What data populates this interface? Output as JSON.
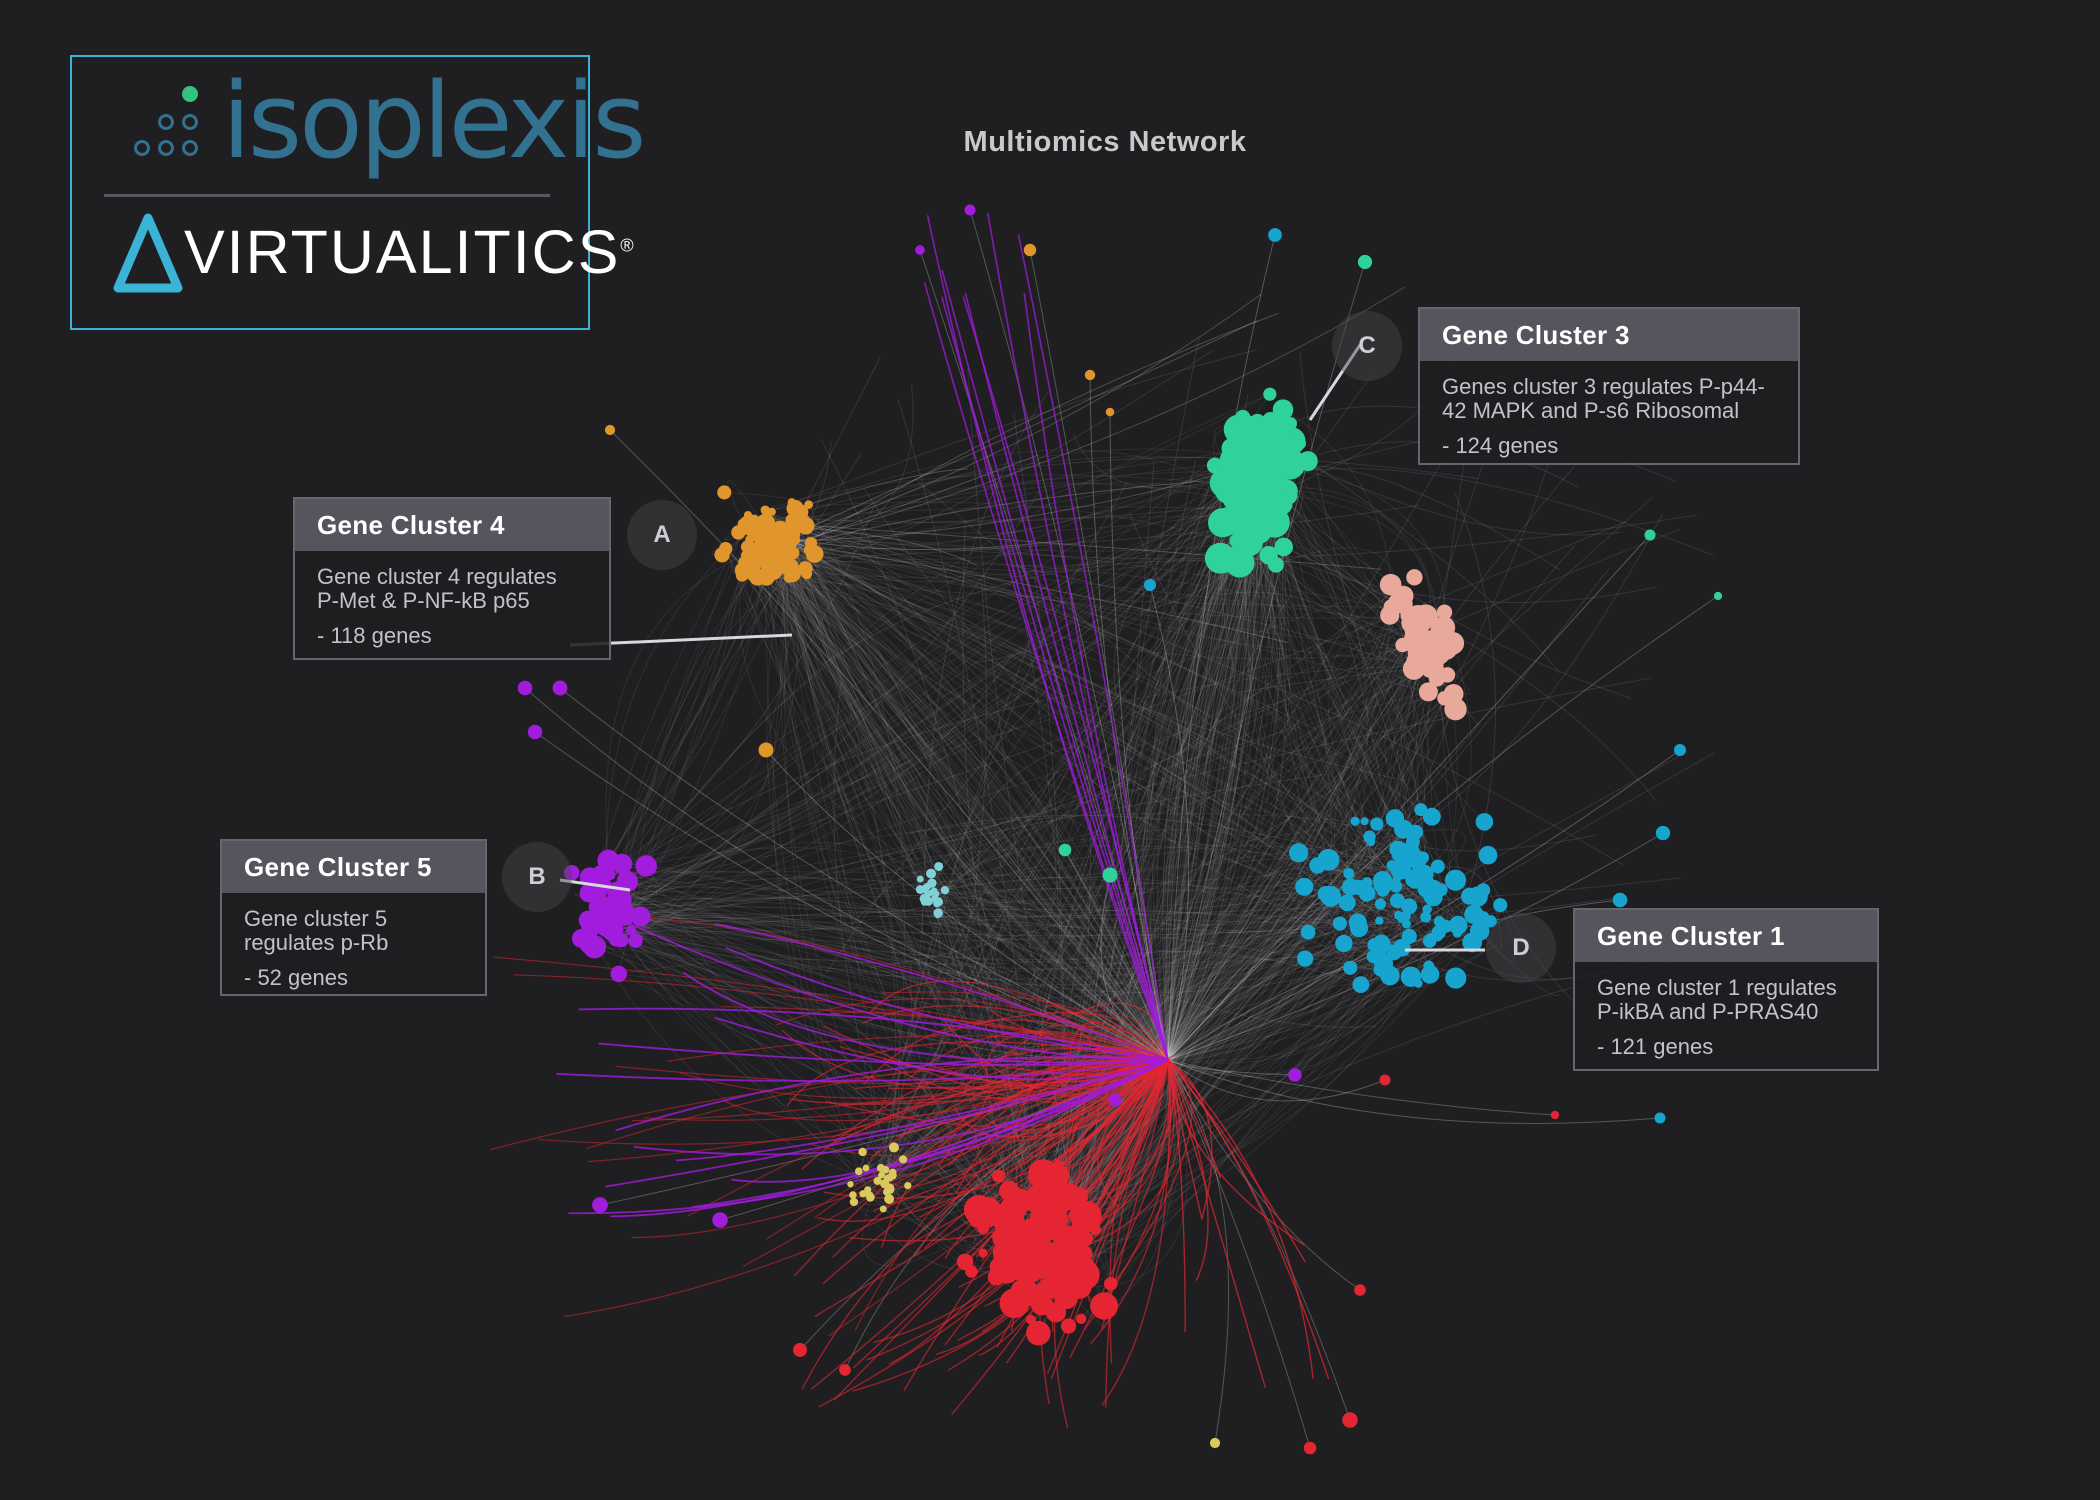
{
  "title": "Multiomics Network",
  "logo": {
    "isoplexis_text": "isoplexis",
    "virtualitics_text": "VIRTUALITICS",
    "iso_dot_accent": "#34c27e",
    "iso_dot_color": "#32718f",
    "virt_triangle_color": "#39b3d6",
    "virt_mark": "®"
  },
  "clusters": [
    {
      "id": "c4",
      "marker": "A",
      "title": "Gene Cluster 4",
      "line1": "Gene cluster 4 regulates",
      "line2": "P-Met & P-NF-kB p65",
      "count": "- 118 genes",
      "color": "#e0962c"
    },
    {
      "id": "c5",
      "marker": "B",
      "title": "Gene Cluster 5",
      "line1": "Gene cluster 5",
      "line2": "regulates p-Rb",
      "count": "- 52 genes",
      "color": "#a21cde"
    },
    {
      "id": "c3",
      "marker": "C",
      "title": "Gene Cluster 3",
      "line1": "Genes cluster 3 regulates P-p44-",
      "line2": "42 MAPK and P-s6 Ribosomal",
      "count": "- 124 genes",
      "color": "#2fd39a"
    },
    {
      "id": "c1",
      "marker": "D",
      "title": "Gene Cluster 1",
      "line1": "Gene cluster 1 regulates",
      "line2": "P-ikBA and P-PRAS40",
      "count": "- 121 genes",
      "color": "#17a4cf"
    }
  ],
  "other_cluster_colors": {
    "red": "#e52632",
    "salmon": "#e8a89a",
    "yellow": "#d9c95e",
    "cyan": "#7fd1d6",
    "edge": "#d8d8d8"
  }
}
